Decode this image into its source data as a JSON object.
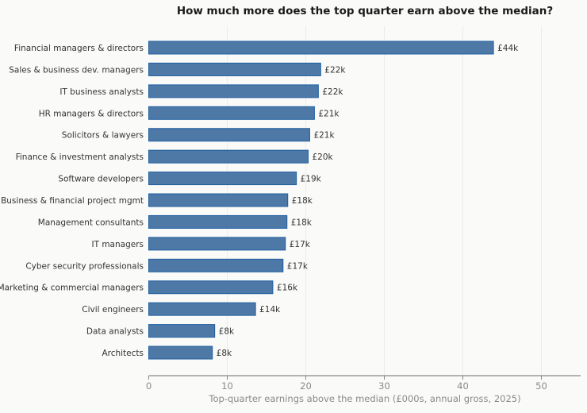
{
  "chart_data": {
    "type": "bar",
    "orientation": "horizontal",
    "title": "How much more does the top quarter earn above the median?",
    "xlabel": "Top-quarter earnings above the median (£000s, annual gross, 2025)",
    "ylabel": "",
    "xlim": [
      0,
      55
    ],
    "xticks": [
      0,
      10,
      20,
      30,
      40,
      50
    ],
    "grid": "vertical",
    "bar_color": "#4e79a7",
    "bar_edge_color": "#1f5fa0",
    "categories": [
      "Financial managers & directors",
      "Sales & business dev. managers",
      "IT business analysts",
      "HR managers & directors",
      "Solicitors & lawyers",
      "Finance & investment analysts",
      "Software developers",
      "Business & financial project mgmt",
      "Management consultants",
      "IT managers",
      "Cyber security professionals",
      "Marketing & commercial managers",
      "Civil engineers",
      "Data analysts",
      "Architects"
    ],
    "values": [
      43.9,
      21.9,
      21.6,
      21.1,
      20.5,
      20.3,
      18.8,
      17.7,
      17.6,
      17.4,
      17.1,
      15.8,
      13.6,
      8.4,
      8.1
    ],
    "data_labels": [
      "£44k",
      "£22k",
      "£22k",
      "£21k",
      "£21k",
      "£20k",
      "£19k",
      "£18k",
      "£18k",
      "£17k",
      "£17k",
      "£16k",
      "£14k",
      "£8k",
      "£8k"
    ]
  }
}
